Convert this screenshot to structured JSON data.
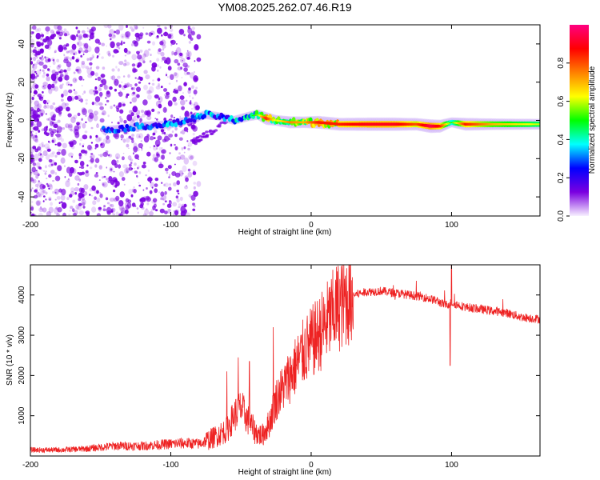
{
  "title": "YM08.2025.262.07.46.R19",
  "colors": {
    "snr_line": "#ee2222",
    "spectrogram_speckle": "#7a00e0",
    "frame": "#000000",
    "colorbar_stops": [
      "#f7f0ff",
      "#7a00e0",
      "#0000ff",
      "#00ffff",
      "#00ff00",
      "#ffff00",
      "#ff8000",
      "#ff0000",
      "#ff0080"
    ]
  },
  "chart_data": [
    {
      "type": "heatmap",
      "name": "spectrogram",
      "title": "YM08.2025.262.07.46.R19",
      "xlabel": "Height of straight line (km)",
      "ylabel": "Frequency (Hz)",
      "xlim": [
        -200,
        163
      ],
      "ylim": [
        -50,
        50
      ],
      "x_ticks": [
        "-200",
        "-100",
        "0",
        "100"
      ],
      "x_tick_values": [
        -200,
        -100,
        0,
        100
      ],
      "y_ticks": [
        "-40",
        "-20",
        "0",
        "20",
        "40"
      ],
      "y_tick_values": [
        -40,
        -20,
        0,
        20,
        40
      ],
      "colorbar": {
        "label": "Normalized spectral amplitude",
        "range": [
          0,
          1
        ],
        "ticks": [
          "0.0",
          "0.2",
          "0.4",
          "0.6",
          "0.8"
        ],
        "tick_values": [
          0,
          0.2,
          0.4,
          0.6,
          0.8
        ]
      },
      "ridge": {
        "description": "dominant frequency track",
        "x_km": [
          -145,
          -120,
          -100,
          -88,
          -75,
          -65,
          -55,
          -45,
          -38,
          -32,
          -25,
          -15,
          -5,
          5,
          20,
          40,
          60,
          75,
          85,
          92,
          100,
          110,
          130,
          163
        ],
        "freq_hz": [
          -5,
          -3,
          -2,
          0,
          3,
          2,
          0,
          2,
          3,
          1,
          0,
          -1,
          -1,
          -1,
          -2,
          -2,
          -2,
          -2,
          -3,
          -3,
          -1,
          -2,
          -2,
          -2
        ],
        "amplitude": [
          0.3,
          0.35,
          0.35,
          0.3,
          0.4,
          0.35,
          0.4,
          0.45,
          0.55,
          0.85,
          0.6,
          0.75,
          0.7,
          0.85,
          0.85,
          0.9,
          0.9,
          0.8,
          0.95,
          0.85,
          0.5,
          0.85,
          0.7,
          0.6
        ]
      }
    },
    {
      "type": "line",
      "name": "snr",
      "xlabel": "Height of straight line (km)",
      "ylabel": "SNR (10 * v/v)",
      "xlim": [
        -200,
        163
      ],
      "ylim": [
        0,
        4750
      ],
      "x_ticks": [
        "-200",
        "-100",
        "0",
        "100"
      ],
      "x_tick_values": [
        -200,
        -100,
        0,
        100
      ],
      "y_ticks": [
        "1000",
        "2000",
        "3000",
        "4000"
      ],
      "y_tick_values": [
        1000,
        2000,
        3000,
        4000
      ],
      "envelope": {
        "x_km": [
          -200,
          -180,
          -160,
          -140,
          -120,
          -100,
          -90,
          -80,
          -70,
          -60,
          -55,
          -50,
          -45,
          -40,
          -35,
          -30,
          -25,
          -20,
          -15,
          -10,
          -5,
          0,
          5,
          10,
          15,
          20,
          25,
          30,
          40,
          50,
          60,
          70,
          80,
          90,
          95,
          100,
          105,
          110,
          120,
          130,
          140,
          150,
          163
        ],
        "snr": [
          150,
          150,
          180,
          250,
          250,
          300,
          320,
          300,
          450,
          650,
          1000,
          1200,
          900,
          600,
          500,
          800,
          1400,
          1700,
          2000,
          2300,
          2600,
          2800,
          3000,
          3250,
          3500,
          3750,
          3900,
          4000,
          4080,
          4100,
          4050,
          4000,
          3950,
          3850,
          3750,
          3800,
          3750,
          3700,
          3650,
          3600,
          3550,
          3450,
          3400
        ]
      },
      "spikes": [
        {
          "x_km": -60,
          "snr": 2100
        },
        {
          "x_km": -52,
          "snr": 2450
        },
        {
          "x_km": -44,
          "snr": 2350
        },
        {
          "x_km": -27,
          "snr": 3200
        },
        {
          "x_km": 100,
          "snr": 4750
        },
        {
          "x_km": 99,
          "snr": 2250
        }
      ]
    }
  ]
}
